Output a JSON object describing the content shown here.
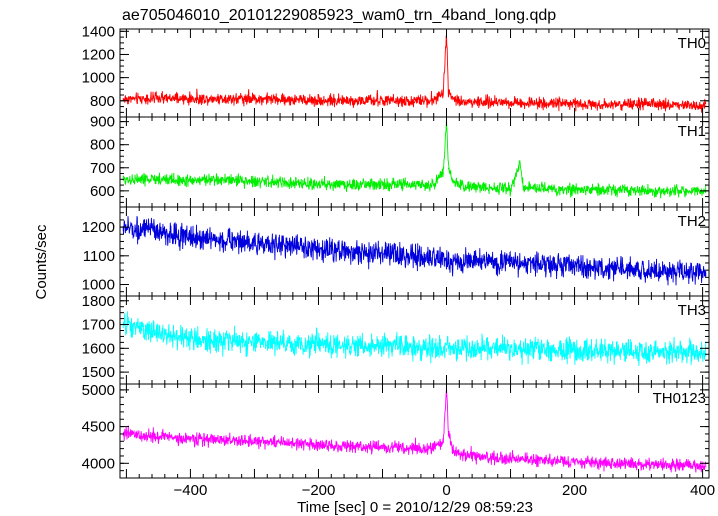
{
  "chart_data": {
    "type": "line",
    "title": "ae705046010_20101229085923_wam0_trn_4band_long.qdp",
    "xlabel": "Time [sec] 0 = 2010/12/29 08:59:23",
    "ylabel": "Counts/sec",
    "xlim": [
      -510,
      410
    ],
    "xticks": [
      -400,
      -200,
      0,
      200,
      400
    ],
    "panels": [
      {
        "name": "TH0",
        "color": "#ff0000",
        "ylim": [
          660,
          1420
        ],
        "yticks": [
          800,
          1000,
          1200,
          1400
        ],
        "x": [
          -505,
          -450,
          -400,
          -350,
          -300,
          -250,
          -200,
          -150,
          -100,
          -50,
          -20,
          -5,
          0,
          3,
          10,
          30,
          60,
          100,
          150,
          200,
          250,
          300,
          350,
          400,
          405
        ],
        "y": [
          815,
          820,
          815,
          820,
          818,
          810,
          805,
          800,
          800,
          795,
          805,
          870,
          1390,
          900,
          820,
          790,
          790,
          785,
          780,
          775,
          770,
          770,
          765,
          760,
          760
        ]
      },
      {
        "name": "TH1",
        "color": "#00ee00",
        "ylim": [
          530,
          920
        ],
        "yticks": [
          600,
          700,
          800,
          900
        ],
        "x": [
          -505,
          -450,
          -400,
          -350,
          -300,
          -250,
          -200,
          -150,
          -100,
          -50,
          -20,
          -5,
          0,
          3,
          10,
          30,
          60,
          100,
          115,
          120,
          150,
          200,
          250,
          300,
          350,
          400,
          405
        ],
        "y": [
          650,
          650,
          645,
          650,
          640,
          635,
          630,
          625,
          630,
          625,
          630,
          680,
          900,
          700,
          640,
          620,
          615,
          610,
          720,
          615,
          610,
          605,
          605,
          600,
          600,
          600,
          600
        ]
      },
      {
        "name": "TH2",
        "color": "#0000dd",
        "ylim": [
          960,
          1270
        ],
        "yticks": [
          1000,
          1100,
          1200
        ],
        "x": [
          -505,
          -450,
          -400,
          -350,
          -300,
          -250,
          -200,
          -150,
          -100,
          -50,
          0,
          50,
          100,
          150,
          200,
          250,
          300,
          350,
          400,
          405
        ],
        "y": [
          1200,
          1180,
          1165,
          1155,
          1145,
          1135,
          1125,
          1115,
          1105,
          1095,
          1085,
          1080,
          1075,
          1070,
          1065,
          1055,
          1050,
          1045,
          1040,
          1040
        ]
      },
      {
        "name": "TH3",
        "color": "#00ffff",
        "ylim": [
          1450,
          1820
        ],
        "yticks": [
          1500,
          1600,
          1700,
          1800
        ],
        "x": [
          -505,
          -450,
          -400,
          -350,
          -300,
          -250,
          -200,
          -150,
          -100,
          -50,
          0,
          50,
          100,
          150,
          200,
          250,
          300,
          350,
          400,
          405
        ],
        "y": [
          1700,
          1660,
          1640,
          1630,
          1625,
          1620,
          1615,
          1610,
          1610,
          1605,
          1600,
          1600,
          1595,
          1595,
          1590,
          1590,
          1585,
          1585,
          1580,
          1580
        ]
      },
      {
        "name": "TH0123",
        "color": "#ff00ff",
        "ylim": [
          3800,
          5080
        ],
        "yticks": [
          4000,
          4500,
          5000
        ],
        "x": [
          -505,
          -450,
          -400,
          -350,
          -300,
          -250,
          -200,
          -150,
          -100,
          -50,
          -20,
          -5,
          0,
          3,
          10,
          30,
          60,
          100,
          150,
          200,
          250,
          300,
          350,
          400,
          405
        ],
        "y": [
          4400,
          4360,
          4330,
          4320,
          4300,
          4280,
          4250,
          4230,
          4220,
          4200,
          4210,
          4320,
          5030,
          4400,
          4180,
          4100,
          4080,
          4060,
          4040,
          4020,
          4000,
          3990,
          3980,
          3970,
          3970
        ]
      }
    ]
  }
}
